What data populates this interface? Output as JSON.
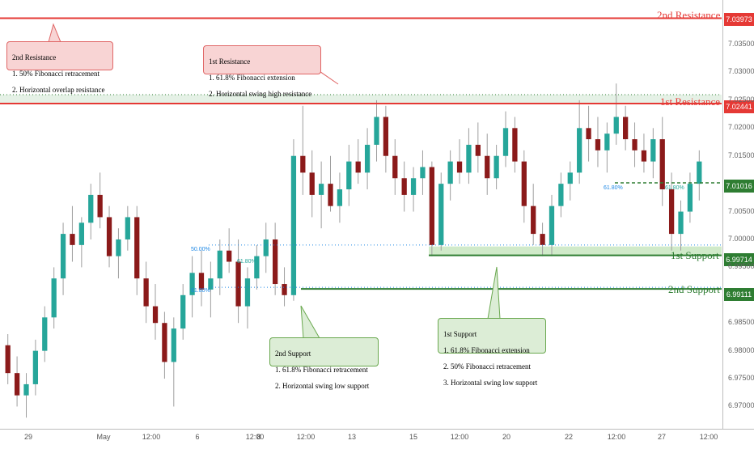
{
  "chart_data": {
    "type": "candlestick",
    "ylim": [
      6.966,
      7.043
    ],
    "y_ticks": [
      "7.03500",
      "7.03000",
      "7.02500",
      "7.02000",
      "7.01500",
      "7.00500",
      "7.00000",
      "6.99500",
      "6.98500",
      "6.98000",
      "6.97500",
      "6.97000"
    ],
    "x_ticks": [
      "29",
      "May",
      "12:00",
      "6",
      "12:00",
      "8",
      "12:00",
      "13",
      "15",
      "12:00",
      "20",
      "22",
      "12:00",
      "27",
      "12:00"
    ],
    "levels": [
      {
        "name": "2nd Resistance",
        "price": "7.03973",
        "value": 7.03973,
        "kind": "resistance"
      },
      {
        "name": "1st Resistance",
        "price": "7.02441",
        "value": 7.02441,
        "kind": "resistance"
      },
      {
        "name": "1st Support",
        "price": "6.99714",
        "value": 6.99714,
        "kind": "support"
      },
      {
        "name": "2nd Support",
        "price": "6.99111",
        "value": 6.99111,
        "kind": "support"
      }
    ],
    "current_price": "7.01016",
    "current_value": 7.01016,
    "fib_labels": [
      "50.00%",
      "61.80%",
      "61.80%",
      "61.80%",
      "61.80%"
    ],
    "candles": [
      [
        6.981,
        6.983,
        6.974,
        6.976
      ],
      [
        6.976,
        6.979,
        6.97,
        6.972
      ],
      [
        6.972,
        6.976,
        6.968,
        6.974
      ],
      [
        6.974,
        6.982,
        6.972,
        6.98
      ],
      [
        6.98,
        6.988,
        6.978,
        6.986
      ],
      [
        6.986,
        6.995,
        6.984,
        6.993
      ],
      [
        6.993,
        7.003,
        6.99,
        7.001
      ],
      [
        7.001,
        7.006,
        6.996,
        6.999
      ],
      [
        6.999,
        7.004,
        6.995,
        7.003
      ],
      [
        7.003,
        7.01,
        7.0,
        7.008
      ],
      [
        7.008,
        7.012,
        7.002,
        7.004
      ],
      [
        7.004,
        7.006,
        6.995,
        6.997
      ],
      [
        6.997,
        7.002,
        6.993,
        7.0
      ],
      [
        7.0,
        7.006,
        6.998,
        7.004
      ],
      [
        7.004,
        7.006,
        6.99,
        6.993
      ],
      [
        6.993,
        6.996,
        6.985,
        6.988
      ],
      [
        6.988,
        6.992,
        6.982,
        6.985
      ],
      [
        6.985,
        6.987,
        6.975,
        6.978
      ],
      [
        6.978,
        6.986,
        6.97,
        6.984
      ],
      [
        6.984,
        6.992,
        6.982,
        6.99
      ],
      [
        6.99,
        6.997,
        6.986,
        6.994
      ],
      [
        6.994,
        6.998,
        6.988,
        6.991
      ],
      [
        6.991,
        6.996,
        6.986,
        6.993
      ],
      [
        6.993,
        7.0,
        6.99,
        6.998
      ],
      [
        6.998,
        7.002,
        6.994,
        6.996
      ],
      [
        6.996,
        7.0,
        6.985,
        6.988
      ],
      [
        6.988,
        6.995,
        6.984,
        6.993
      ],
      [
        6.993,
        6.999,
        6.991,
        6.997
      ],
      [
        6.997,
        7.003,
        6.994,
        7.0
      ],
      [
        7.0,
        7.003,
        6.99,
        6.992
      ],
      [
        6.992,
        6.995,
        6.988,
        6.99
      ],
      [
        6.99,
        7.018,
        6.989,
        7.015
      ],
      [
        7.015,
        7.024,
        7.008,
        7.012
      ],
      [
        7.012,
        7.016,
        7.004,
        7.008
      ],
      [
        7.008,
        7.014,
        7.002,
        7.01
      ],
      [
        7.01,
        7.015,
        7.005,
        7.006
      ],
      [
        7.006,
        7.012,
        7.003,
        7.009
      ],
      [
        7.009,
        7.017,
        7.006,
        7.014
      ],
      [
        7.014,
        7.018,
        7.01,
        7.012
      ],
      [
        7.012,
        7.02,
        7.009,
        7.017
      ],
      [
        7.017,
        7.025,
        7.014,
        7.022
      ],
      [
        7.022,
        7.024,
        7.012,
        7.015
      ],
      [
        7.015,
        7.018,
        7.008,
        7.011
      ],
      [
        7.011,
        7.014,
        7.005,
        7.008
      ],
      [
        7.008,
        7.013,
        7.005,
        7.011
      ],
      [
        7.011,
        7.016,
        7.008,
        7.013
      ],
      [
        7.013,
        7.014,
        6.997,
        6.999
      ],
      [
        6.999,
        7.012,
        6.998,
        7.01
      ],
      [
        7.01,
        7.016,
        7.007,
        7.014
      ],
      [
        7.014,
        7.018,
        7.01,
        7.012
      ],
      [
        7.012,
        7.02,
        7.01,
        7.017
      ],
      [
        7.017,
        7.021,
        7.012,
        7.015
      ],
      [
        7.015,
        7.019,
        7.008,
        7.011
      ],
      [
        7.011,
        7.017,
        7.009,
        7.015
      ],
      [
        7.015,
        7.023,
        7.013,
        7.02
      ],
      [
        7.02,
        7.022,
        7.012,
        7.014
      ],
      [
        7.014,
        7.016,
        7.003,
        7.006
      ],
      [
        7.006,
        7.01,
        6.999,
        7.001
      ],
      [
        7.001,
        7.003,
        6.997,
        6.999
      ],
      [
        6.999,
        7.008,
        6.997,
        7.006
      ],
      [
        7.006,
        7.012,
        7.004,
        7.01
      ],
      [
        7.01,
        7.014,
        7.007,
        7.012
      ],
      [
        7.012,
        7.025,
        7.01,
        7.02
      ],
      [
        7.02,
        7.024,
        7.014,
        7.018
      ],
      [
        7.018,
        7.022,
        7.013,
        7.016
      ],
      [
        7.016,
        7.021,
        7.012,
        7.019
      ],
      [
        7.019,
        7.028,
        7.017,
        7.022
      ],
      [
        7.022,
        7.024,
        7.016,
        7.018
      ],
      [
        7.018,
        7.021,
        7.013,
        7.016
      ],
      [
        7.016,
        7.019,
        7.012,
        7.014
      ],
      [
        7.014,
        7.02,
        7.011,
        7.018
      ],
      [
        7.018,
        7.022,
        7.006,
        7.009
      ],
      [
        7.009,
        7.012,
        6.998,
        7.001
      ],
      [
        7.001,
        7.007,
        6.998,
        7.005
      ],
      [
        7.005,
        7.012,
        7.003,
        7.01
      ],
      [
        7.01,
        7.016,
        7.007,
        7.014
      ]
    ]
  },
  "annotations": {
    "second_resistance": {
      "lines": [
        "2nd Resistance",
        "1. 50% Fibonacci retracement",
        "2. Horizontal overlap resistance"
      ]
    },
    "first_resistance": {
      "lines": [
        "1st Resistance",
        "1. 61.8% Fibonacci extension",
        "2. Horizontal swing high resistance"
      ]
    },
    "second_support": {
      "lines": [
        "2nd Support",
        "1. 61.8% Fibonacci retracement",
        "2. Horizontal swing low support"
      ]
    },
    "first_support": {
      "lines": [
        "1st Support",
        "1. 61.8% Fibonacci extension",
        "2. 50% Fibonacci retracement",
        "3. Horizontal swing low support"
      ]
    }
  },
  "colors": {
    "up": "#26a69a",
    "down": "#8b1a1a",
    "wick": "#9e9e9e",
    "resistance": "#e53935",
    "support": "#2e7d32",
    "support_zone": "#c8e6c0",
    "resistance_zone": "#dfeee0"
  }
}
